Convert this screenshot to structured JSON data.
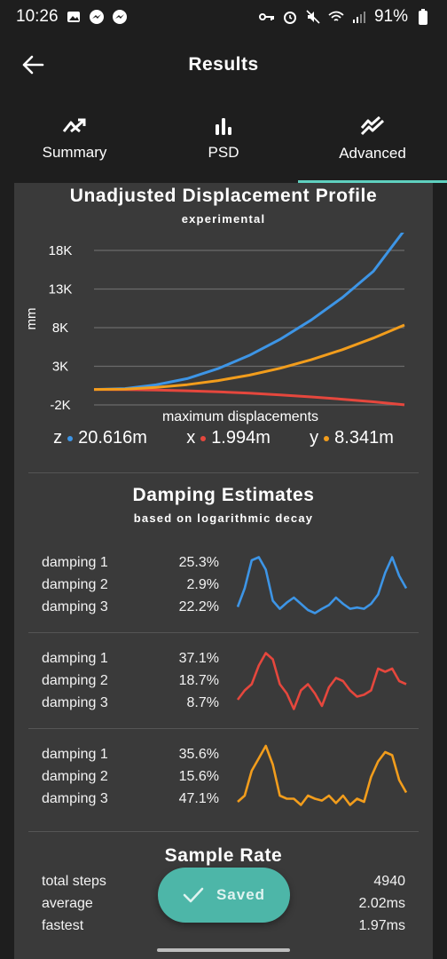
{
  "status_bar": {
    "time": "10:26",
    "battery": "91%"
  },
  "header": {
    "title": "Results"
  },
  "tabs": [
    {
      "label": "Summary",
      "icon": "trending-icon"
    },
    {
      "label": "PSD",
      "icon": "bar-chart-icon"
    },
    {
      "label": "Advanced",
      "icon": "double-trend-icon",
      "active": true
    }
  ],
  "displacement": {
    "title": "Unadjusted Displacement Profile",
    "subtitle": "experimental",
    "caption": "maximum displacements",
    "legend": [
      {
        "axis": "z",
        "value": "20.616m",
        "color": "#3d95e6"
      },
      {
        "axis": "x",
        "value": "1.994m",
        "color": "#e5473d"
      },
      {
        "axis": "y",
        "value": "8.341m",
        "color": "#f29d1c"
      }
    ]
  },
  "chart_data": {
    "type": "line",
    "title": "Unadjusted Displacement Profile",
    "subtitle": "experimental",
    "xlabel": "maximum displacements",
    "ylabel": "mm",
    "yticks": [
      "18K",
      "13K",
      "8K",
      "3K",
      "-2K"
    ],
    "ylim": [
      -2000,
      18000
    ],
    "grid": true,
    "x": [
      0,
      0.1,
      0.2,
      0.3,
      0.4,
      0.5,
      0.6,
      0.7,
      0.8,
      0.9,
      1.0
    ],
    "series": [
      {
        "name": "z",
        "color": "#3d95e6",
        "values": [
          0,
          120,
          600,
          1400,
          2700,
          4400,
          6500,
          9000,
          11900,
          15300,
          20616
        ]
      },
      {
        "name": "x",
        "color": "#e5473d",
        "values": [
          0,
          -20,
          -80,
          -170,
          -300,
          -480,
          -700,
          -960,
          -1260,
          -1600,
          -1994
        ]
      },
      {
        "name": "y",
        "color": "#f29d1c",
        "values": [
          0,
          50,
          260,
          620,
          1150,
          1850,
          2750,
          3850,
          5150,
          6650,
          8341
        ]
      }
    ]
  },
  "damping": {
    "title": "Damping Estimates",
    "subtitle": "based on logarithmic decay",
    "groups": [
      {
        "color": "#3d95e6",
        "rows": [
          {
            "label": "damping 1",
            "value": "25.3%"
          },
          {
            "label": "damping 2",
            "value": "2.9%"
          },
          {
            "label": "damping 3",
            "value": "22.2%"
          }
        ],
        "spark": [
          0.15,
          0.45,
          0.9,
          0.95,
          0.75,
          0.25,
          0.12,
          0.22,
          0.3,
          0.2,
          0.1,
          0.05,
          0.12,
          0.18,
          0.3,
          0.2,
          0.12,
          0.14,
          0.12,
          0.2,
          0.35,
          0.7,
          0.95,
          0.65,
          0.45
        ]
      },
      {
        "color": "#e5473d",
        "rows": [
          {
            "label": "damping 1",
            "value": "37.1%"
          },
          {
            "label": "damping 2",
            "value": "18.7%"
          },
          {
            "label": "damping 3",
            "value": "8.7%"
          }
        ],
        "spark": [
          0.2,
          0.35,
          0.45,
          0.75,
          0.95,
          0.85,
          0.45,
          0.3,
          0.05,
          0.35,
          0.45,
          0.3,
          0.1,
          0.4,
          0.55,
          0.5,
          0.35,
          0.25,
          0.28,
          0.35,
          0.7,
          0.65,
          0.7,
          0.5,
          0.45
        ]
      },
      {
        "color": "#f29d1c",
        "rows": [
          {
            "label": "damping 1",
            "value": "35.6%"
          },
          {
            "label": "damping 2",
            "value": "15.6%"
          },
          {
            "label": "damping 3",
            "value": "47.1%"
          }
        ],
        "spark": [
          0.1,
          0.2,
          0.6,
          0.8,
          1.0,
          0.7,
          0.2,
          0.15,
          0.15,
          0.05,
          0.2,
          0.15,
          0.12,
          0.2,
          0.08,
          0.2,
          0.05,
          0.15,
          0.1,
          0.5,
          0.75,
          0.9,
          0.85,
          0.45,
          0.25
        ]
      }
    ]
  },
  "sample_rate": {
    "title": "Sample Rate",
    "rows": [
      {
        "label": "total steps",
        "value": "4940"
      },
      {
        "label": "average",
        "value": "2.02ms"
      },
      {
        "label": "fastest",
        "value": "1.97ms"
      }
    ]
  },
  "saved_button": {
    "label": "Saved"
  }
}
